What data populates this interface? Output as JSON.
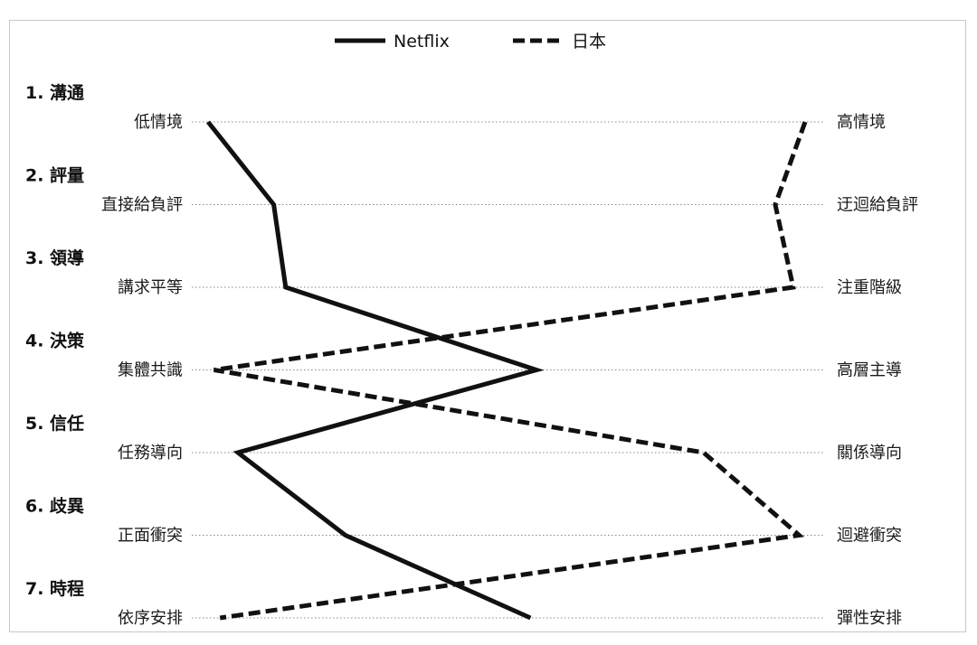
{
  "chart_data": {
    "type": "line",
    "title": "",
    "xlabel": "",
    "ylabel": "",
    "xlim": [
      0,
      100
    ],
    "legend": {
      "placement": "top-center"
    },
    "grid": "dotted-guides",
    "dimensions": [
      {
        "title": "1. 溝通",
        "left": "低情境",
        "right": "高情境"
      },
      {
        "title": "2. 評量",
        "left": "直接給負評",
        "right": "迂迴給負評"
      },
      {
        "title": "3. 領導",
        "left": "講求平等",
        "right": "注重階級"
      },
      {
        "title": "4. 決策",
        "left": "集體共識",
        "right": "高層主導"
      },
      {
        "title": "5. 信任",
        "left": "任務導向",
        "right": "關係導向"
      },
      {
        "title": "6. 歧異",
        "left": "正面衝突",
        "right": "迴避衝突"
      },
      {
        "title": "7. 時程",
        "left": "依序安排",
        "right": "彈性安排"
      }
    ],
    "series": [
      {
        "name": "Netflix",
        "style": "solid",
        "color": "#111111",
        "values": [
          0,
          11,
          13,
          55,
          5,
          23,
          54
        ]
      },
      {
        "name": "日本",
        "style": "dashed",
        "color": "#111111",
        "values": [
          100,
          95,
          98,
          1,
          83,
          99,
          2
        ]
      }
    ]
  }
}
